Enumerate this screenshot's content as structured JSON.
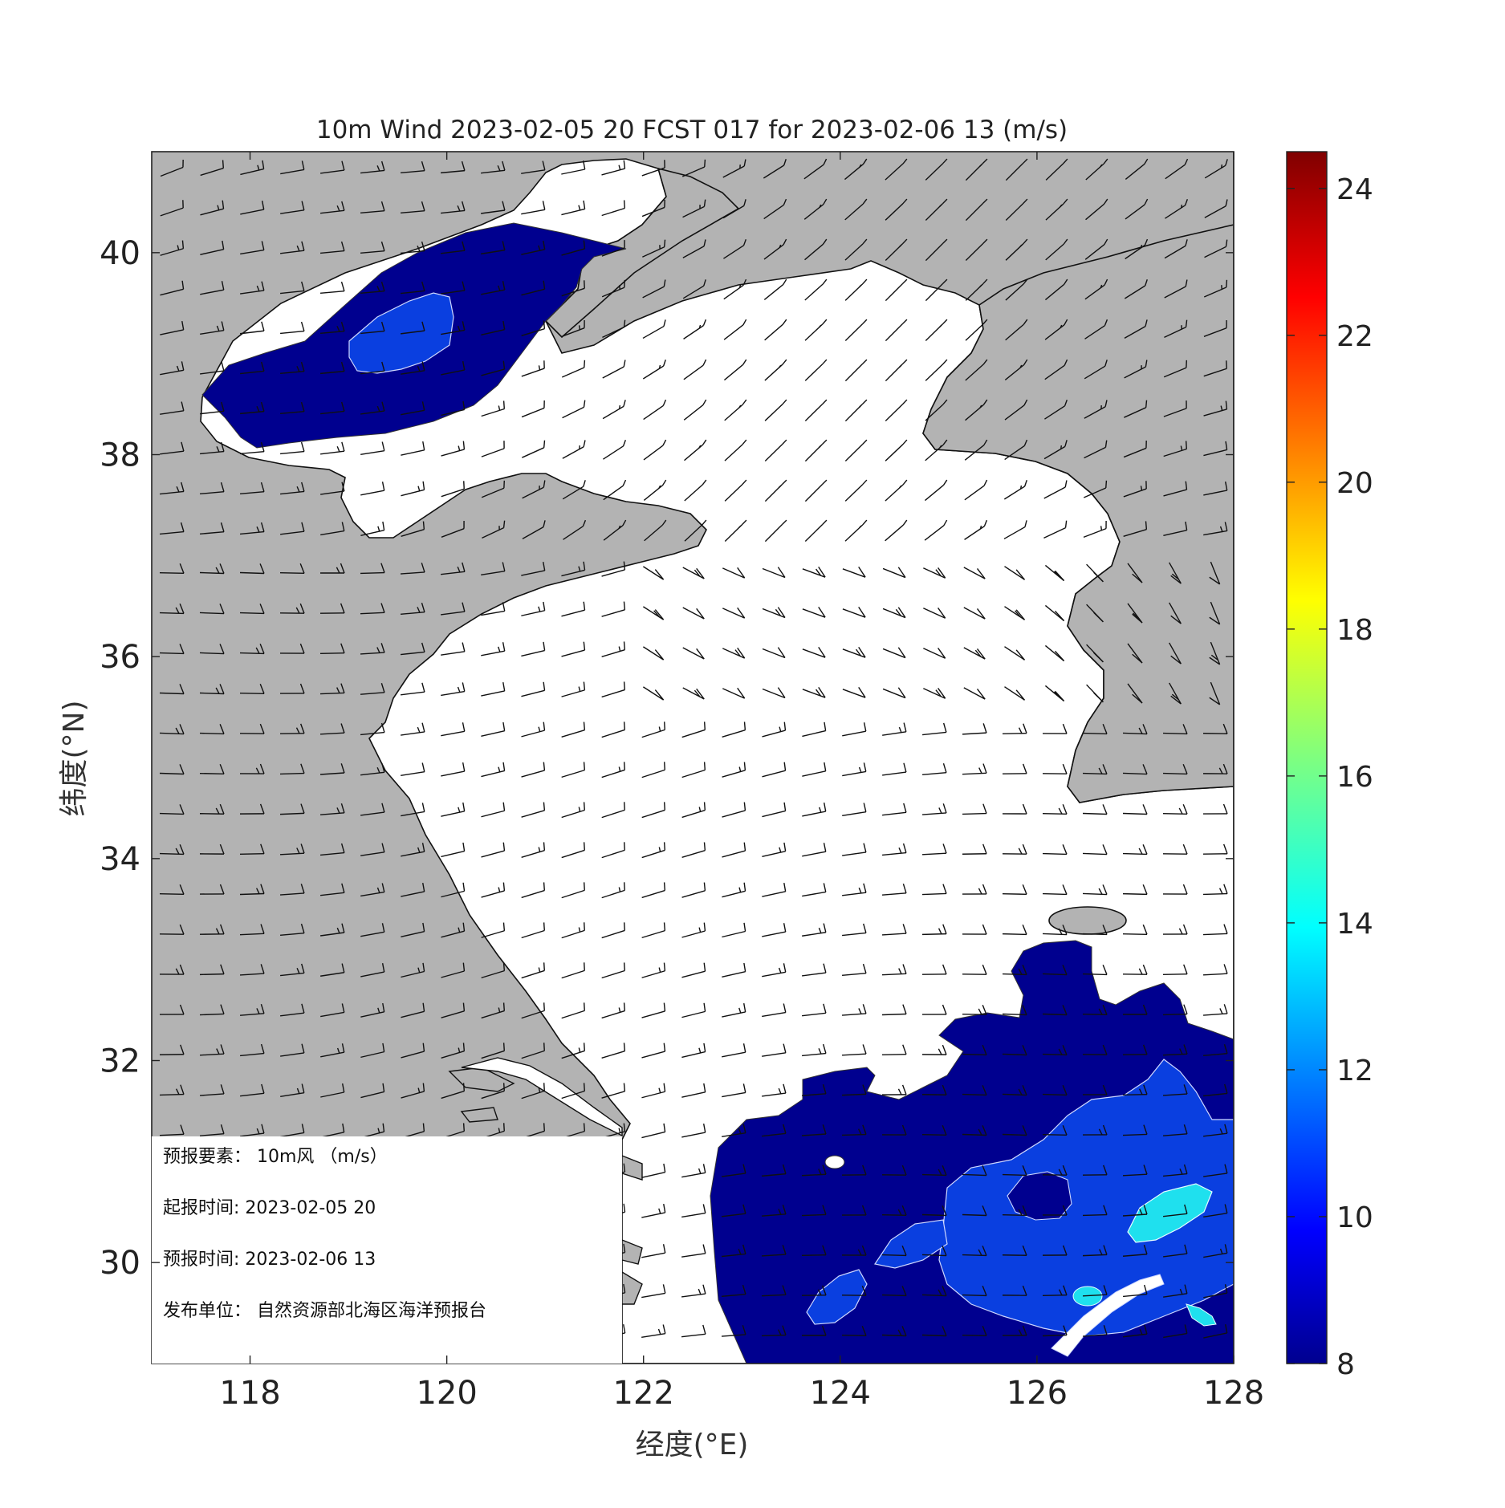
{
  "title": "10m Wind 2023-02-05 20 FCST 017 for 2023-02-06 13 (m/s)",
  "map": {
    "lon_range": [
      117,
      128
    ],
    "lat_range": [
      29,
      41
    ],
    "xlabel": "经度(°E)",
    "ylabel": "纬度(°N)",
    "xticks": [
      118,
      120,
      122,
      124,
      126,
      128
    ],
    "yticks": [
      30,
      32,
      34,
      36,
      38,
      40
    ],
    "land_color": "#b3b3b3",
    "sea_color": "#ffffff"
  },
  "colorbar": {
    "min": 8,
    "max": 24.5,
    "ticks": [
      8,
      10,
      12,
      14,
      16,
      18,
      20,
      22,
      24
    ],
    "colormap": "jet"
  },
  "info_box": {
    "element": "预报要素： 10m风 （m/s）",
    "issue_time": "起报时间: 2023-02-05 20",
    "valid_time": "预报时间: 2023-02-06 13",
    "publisher": "发布单位： 自然资源部北海区海洋预报台"
  },
  "wind_field": {
    "speed_regions": [
      {
        "name": "bohai-strong-wind",
        "min_speed": 8,
        "color": "#00008f"
      },
      {
        "name": "bohai-core",
        "min_speed": 10,
        "color": "#0a3fe0"
      },
      {
        "name": "east-china-sea-strong-wind",
        "min_speed": 8,
        "color": "#00008f"
      },
      {
        "name": "east-china-sea-core",
        "min_speed": 10,
        "color": "#0a3fe0"
      },
      {
        "name": "jeju-core",
        "min_speed": 12,
        "color": "#1fe0ee"
      }
    ]
  }
}
